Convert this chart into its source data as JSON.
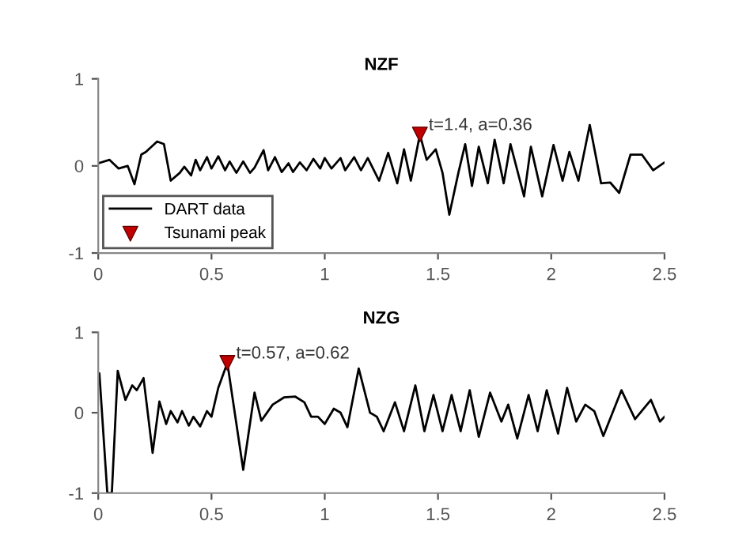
{
  "chart_data": [
    {
      "type": "line",
      "title": "NZF",
      "xlim": [
        0,
        2.5
      ],
      "ylim": [
        -1,
        1
      ],
      "xticks": [
        0,
        0.5,
        1,
        1.5,
        2,
        2.5
      ],
      "yticks": [
        -1,
        0,
        1
      ],
      "grid": false,
      "legend": "bottom left",
      "annotations": [
        {
          "text": "t=1.4, a=0.36",
          "x": 1.42,
          "y": 0.36
        }
      ],
      "series": [
        {
          "name": "DART data",
          "color": "#000000",
          "marker": "none",
          "x": [
            0,
            0.05,
            0.09,
            0.13,
            0.16,
            0.19,
            0.21,
            0.26,
            0.29,
            0.32,
            0.36,
            0.38,
            0.41,
            0.43,
            0.45,
            0.48,
            0.5,
            0.53,
            0.56,
            0.58,
            0.61,
            0.64,
            0.67,
            0.69,
            0.73,
            0.75,
            0.78,
            0.81,
            0.84,
            0.86,
            0.89,
            0.92,
            0.95,
            0.98,
            1.0,
            1.03,
            1.07,
            1.09,
            1.13,
            1.16,
            1.19,
            1.24,
            1.28,
            1.32,
            1.35,
            1.38,
            1.42,
            1.45,
            1.49,
            1.52,
            1.55,
            1.59,
            1.62,
            1.65,
            1.68,
            1.72,
            1.75,
            1.79,
            1.82,
            1.88,
            1.91,
            1.96,
            2.01,
            2.05,
            2.08,
            2.12,
            2.17,
            2.22,
            2.26,
            2.3,
            2.35,
            2.4,
            2.45,
            2.5
          ],
          "values": [
            0.03,
            0.07,
            -0.03,
            0,
            -0.21,
            0.13,
            0.16,
            0.28,
            0.25,
            -0.17,
            -0.08,
            -0.01,
            -0.11,
            0.07,
            -0.05,
            0.1,
            -0.03,
            0.11,
            -0.05,
            0.05,
            -0.08,
            0.05,
            -0.08,
            -0.02,
            0.18,
            -0.05,
            0.1,
            -0.07,
            0.03,
            -0.07,
            0.04,
            -0.05,
            0.08,
            -0.03,
            0.09,
            -0.03,
            0.09,
            -0.05,
            0.1,
            -0.05,
            0.09,
            -0.17,
            0.15,
            -0.2,
            0.19,
            -0.17,
            0.36,
            0.07,
            0.19,
            -0.08,
            -0.56,
            -0.08,
            0.25,
            -0.23,
            0.22,
            -0.2,
            0.3,
            -0.2,
            0.25,
            -0.35,
            0.22,
            -0.35,
            0.24,
            -0.17,
            0.16,
            -0.17,
            0.47,
            -0.2,
            -0.19,
            -0.31,
            0.13,
            0.13,
            -0.05,
            0.04
          ]
        },
        {
          "name": "Tsunami peak",
          "type": "scatter",
          "color": "#c00000",
          "marker": "triangle",
          "x": [
            1.42
          ],
          "values": [
            0.36
          ]
        }
      ]
    },
    {
      "type": "line",
      "title": "NZG",
      "xlim": [
        0,
        2.5
      ],
      "ylim": [
        -1,
        1
      ],
      "xticks": [
        0,
        0.5,
        1,
        1.5,
        2,
        2.5
      ],
      "yticks": [
        -1,
        0,
        1
      ],
      "grid": false,
      "legend": false,
      "annotations": [
        {
          "text": "t=0.57, a=0.62",
          "x": 0.57,
          "y": 0.62
        }
      ],
      "series": [
        {
          "color": "#000000",
          "marker": "none",
          "x": [
            0,
            0.005,
            0.04,
            0.06,
            0.086,
            0.12,
            0.15,
            0.17,
            0.2,
            0.24,
            0.27,
            0.3,
            0.32,
            0.35,
            0.37,
            0.4,
            0.42,
            0.45,
            0.48,
            0.5,
            0.53,
            0.57,
            0.64,
            0.69,
            0.72,
            0.77,
            0.82,
            0.87,
            0.91,
            0.94,
            0.97,
            1.0,
            1.04,
            1.07,
            1.1,
            1.15,
            1.2,
            1.23,
            1.26,
            1.31,
            1.35,
            1.4,
            1.44,
            1.48,
            1.52,
            1.56,
            1.6,
            1.64,
            1.68,
            1.73,
            1.78,
            1.81,
            1.85,
            1.9,
            1.94,
            1.98,
            2.03,
            2.07,
            2.11,
            2.15,
            2.19,
            2.23,
            2.31,
            2.37,
            2.44,
            2.48,
            2.5
          ],
          "values": [
            0.4,
            0.49,
            -1,
            -1,
            0.52,
            0.16,
            0.34,
            0.28,
            0.43,
            -0.5,
            0.14,
            -0.14,
            0.02,
            -0.12,
            0.02,
            -0.16,
            -0.05,
            -0.17,
            0.02,
            -0.05,
            0.31,
            0.62,
            -0.71,
            0.25,
            -0.1,
            0.1,
            0.19,
            0.2,
            0.13,
            -0.05,
            -0.05,
            -0.14,
            0.05,
            0,
            -0.18,
            0.55,
            0,
            -0.05,
            -0.23,
            0.13,
            -0.23,
            0.34,
            -0.23,
            0.22,
            -0.23,
            0.22,
            -0.23,
            0.28,
            -0.3,
            0.25,
            -0.11,
            0.1,
            -0.32,
            0.22,
            -0.23,
            0.28,
            -0.26,
            0.31,
            -0.11,
            0.1,
            0.02,
            -0.29,
            0.28,
            -0.08,
            0.16,
            -0.11,
            -0.05
          ]
        },
        {
          "type": "scatter",
          "color": "#c00000",
          "marker": "triangle",
          "x": [
            0.57
          ],
          "values": [
            0.62
          ]
        }
      ]
    }
  ]
}
